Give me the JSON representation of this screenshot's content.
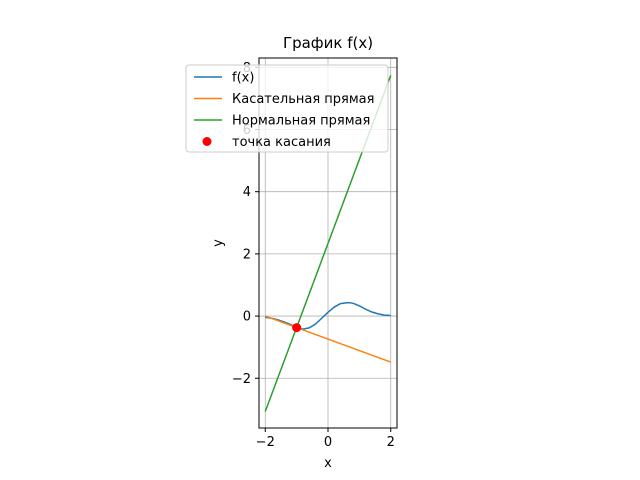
{
  "chart_data": {
    "type": "line",
    "title": "График f(x)",
    "xlabel": "x",
    "ylabel": "y",
    "xlim": [
      -2.2,
      2.2
    ],
    "ylim": [
      -3.6,
      8.3
    ],
    "grid": true,
    "legend_position": "top-left",
    "x_ticks": [
      -2,
      0,
      2
    ],
    "x_tick_labels": [
      "−2",
      "0",
      "2"
    ],
    "y_ticks": [
      -2,
      0,
      2,
      4,
      6,
      8
    ],
    "y_tick_labels": [
      "−2",
      "0",
      "2",
      "4",
      "6",
      "8"
    ],
    "series": [
      {
        "name": "f(x)",
        "type": "line",
        "color": "#1f77b4",
        "x": [
          -2.0,
          -1.8,
          -1.6,
          -1.4,
          -1.2,
          -1.0,
          -0.8,
          -0.6,
          -0.4,
          -0.2,
          0.0,
          0.2,
          0.4,
          0.6,
          0.7,
          0.8,
          1.0,
          1.2,
          1.4,
          1.6,
          1.8,
          2.0
        ],
        "y": [
          -0.04,
          -0.07,
          -0.12,
          -0.19,
          -0.27,
          -0.37,
          -0.42,
          -0.38,
          -0.26,
          -0.07,
          0.12,
          0.29,
          0.4,
          0.43,
          0.43,
          0.41,
          0.33,
          0.22,
          0.13,
          0.07,
          0.03,
          0.02
        ]
      },
      {
        "name": "Касательная прямая",
        "type": "line",
        "color": "#ff7f0e",
        "x": [
          -2.0,
          2.0
        ],
        "y": [
          0.0,
          -1.48
        ]
      },
      {
        "name": "Нормальная прямая",
        "type": "line",
        "color": "#2ca02c",
        "x": [
          -2.0,
          2.0
        ],
        "y": [
          -3.07,
          7.74
        ]
      },
      {
        "name": "точка касания",
        "type": "scatter",
        "color": "#ff0000",
        "x": [
          -1.0
        ],
        "y": [
          -0.37
        ]
      }
    ]
  }
}
